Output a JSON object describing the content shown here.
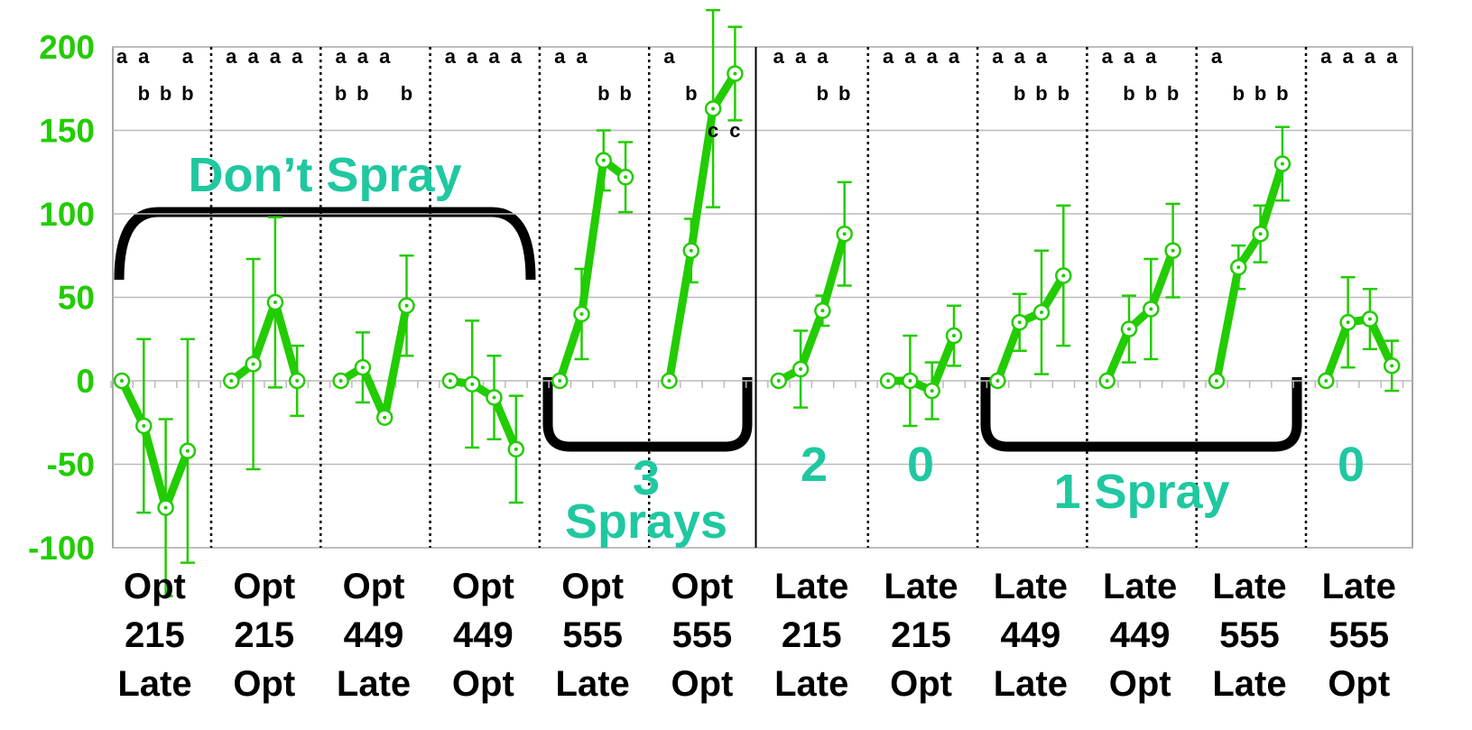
{
  "chart_data": {
    "type": "line",
    "color": "#22cc00",
    "grid": true,
    "ylim": [
      -100,
      200
    ],
    "yticks": [
      -100,
      -50,
      0,
      50,
      100,
      150,
      200
    ],
    "categories": [
      [
        "Opt",
        "215",
        "Late"
      ],
      [
        "Opt",
        "215",
        "Opt"
      ],
      [
        "Opt",
        "449",
        "Late"
      ],
      [
        "Opt",
        "449",
        "Opt"
      ],
      [
        "Opt",
        "555",
        "Late"
      ],
      [
        "Opt",
        "555",
        "Opt"
      ],
      [
        "Late",
        "215",
        "Late"
      ],
      [
        "Late",
        "215",
        "Opt"
      ],
      [
        "Late",
        "449",
        "Late"
      ],
      [
        "Late",
        "449",
        "Opt"
      ],
      [
        "Late",
        "555",
        "Late"
      ],
      [
        "Late",
        "555",
        "Opt"
      ]
    ],
    "groups": [
      {
        "values": [
          0,
          -27,
          -76,
          -42
        ],
        "errors": [
          null,
          52,
          53,
          67
        ],
        "letters": [
          [
            "a"
          ],
          [
            "a",
            "b"
          ],
          [
            "b"
          ],
          [
            "a",
            "b"
          ]
        ]
      },
      {
        "values": [
          0,
          10,
          47,
          0
        ],
        "errors": [
          null,
          63,
          51,
          21
        ],
        "letters": [
          [
            "a"
          ],
          [
            "a"
          ],
          [
            "a"
          ],
          [
            "a"
          ]
        ]
      },
      {
        "values": [
          0,
          8,
          -22,
          45
        ],
        "errors": [
          null,
          21,
          2,
          30
        ],
        "letters": [
          [
            "a",
            "b"
          ],
          [
            "a",
            "b"
          ],
          [
            "a"
          ],
          [
            "b"
          ]
        ]
      },
      {
        "values": [
          0,
          -2,
          -10,
          -41
        ],
        "errors": [
          null,
          38,
          25,
          32
        ],
        "letters": [
          [
            "a"
          ],
          [
            "a"
          ],
          [
            "a"
          ],
          [
            "a"
          ]
        ]
      },
      {
        "values": [
          0,
          40,
          132,
          122
        ],
        "errors": [
          null,
          27,
          18,
          21
        ],
        "letters": [
          [
            "a"
          ],
          [
            "a"
          ],
          [
            "b"
          ],
          [
            "b"
          ]
        ]
      },
      {
        "values": [
          0,
          78,
          163,
          184
        ],
        "errors": [
          null,
          19,
          59,
          28
        ],
        "letters": [
          [
            "a"
          ],
          [
            "b"
          ],
          [
            "c"
          ],
          [
            "c"
          ]
        ]
      },
      {
        "values": [
          0,
          7,
          42,
          88
        ],
        "errors": [
          null,
          23,
          9,
          31
        ],
        "letters": [
          [
            "a"
          ],
          [
            "a"
          ],
          [
            "a",
            "b"
          ],
          [
            "b"
          ]
        ]
      },
      {
        "values": [
          0,
          0,
          -6,
          27
        ],
        "errors": [
          null,
          27,
          17,
          18
        ],
        "letters": [
          [
            "a"
          ],
          [
            "a"
          ],
          [
            "a"
          ],
          [
            "a"
          ]
        ]
      },
      {
        "values": [
          0,
          35,
          41,
          63
        ],
        "errors": [
          null,
          17,
          37,
          42
        ],
        "letters": [
          [
            "a"
          ],
          [
            "a",
            "b"
          ],
          [
            "a",
            "b"
          ],
          [
            "b"
          ]
        ]
      },
      {
        "values": [
          0,
          31,
          43,
          78
        ],
        "errors": [
          null,
          20,
          30,
          28
        ],
        "letters": [
          [
            "a"
          ],
          [
            "a",
            "b"
          ],
          [
            "a",
            "b"
          ],
          [
            "b"
          ]
        ]
      },
      {
        "values": [
          0,
          68,
          88,
          130
        ],
        "errors": [
          null,
          13,
          17,
          22
        ],
        "letters": [
          [
            "a"
          ],
          [
            "b"
          ],
          [
            "b"
          ],
          [
            "b"
          ]
        ]
      },
      {
        "values": [
          0,
          35,
          37,
          9
        ],
        "errors": [
          null,
          27,
          18,
          15
        ],
        "letters": [
          [
            "a"
          ],
          [
            "a"
          ],
          [
            "a"
          ],
          [
            "a"
          ]
        ]
      }
    ],
    "annotations": [
      "Don’t Spray",
      "3",
      "Sprays",
      "2",
      "0",
      "1 Spray",
      "0"
    ]
  }
}
